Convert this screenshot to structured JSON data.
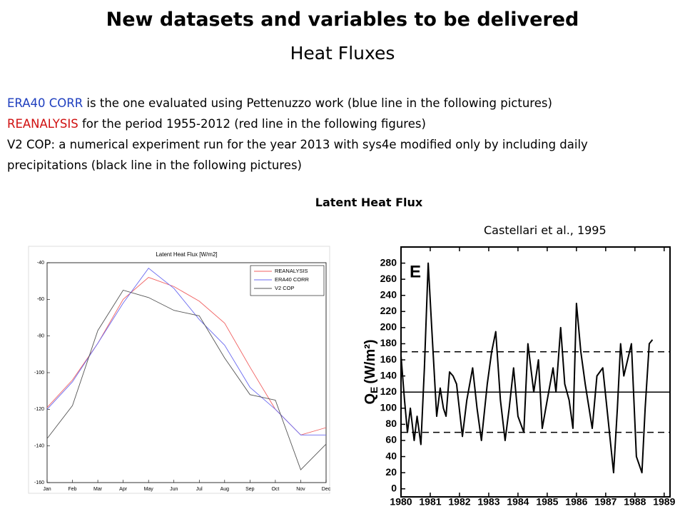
{
  "header": {
    "title": "New datasets and variables to be delivered",
    "subtitle": "Heat Fluxes"
  },
  "body": {
    "lines": [
      {
        "lead": "ERA40 CORR",
        "lead_color": "#1f3fbf",
        "text": " is the one evaluated using Pettenuzzo work (blue line in the following pictures)"
      },
      {
        "lead": "REANALYSIS",
        "lead_color": "#d01010",
        "text": " for the period 1955-2012 (red line in the following figures)"
      },
      {
        "text": "V2 COP: a numerical experiment run for the year 2013 with sys4e modified only by including daily precipitations (black line in the following pictures)"
      }
    ]
  },
  "section_label": "Latent Heat Flux",
  "citation": "Castellari et al., 1995",
  "chart_data": [
    {
      "type": "line",
      "title": "Latent Heat Flux [W/m2]",
      "categories": [
        "Jan",
        "Feb",
        "Mar",
        "Apr",
        "May",
        "Jun",
        "Jul",
        "Aug",
        "Sep",
        "Oct",
        "Nov",
        "Dec"
      ],
      "series": [
        {
          "name": "REANALYSIS",
          "color": "#f06060",
          "values": [
            -119,
            -104,
            -84,
            -60,
            -48,
            -53,
            -61,
            -73,
            -97,
            -120,
            -134,
            -130
          ]
        },
        {
          "name": "ERA40 CORR",
          "color": "#6a6af0",
          "values": [
            -120,
            -105,
            -84,
            -62,
            -43,
            -54,
            -71,
            -85,
            -108,
            -120,
            -134,
            -134
          ]
        },
        {
          "name": "V2 COP",
          "color": "#555555",
          "values": [
            -136,
            -118,
            -77,
            -55,
            -59,
            -66,
            -69,
            -92,
            -112,
            -115,
            -153,
            -139
          ]
        }
      ],
      "ylim": [
        -160,
        -40
      ],
      "yticks": [
        -160,
        -140,
        -120,
        -100,
        -80,
        -60,
        -40
      ],
      "grid": false,
      "legend": "upper right"
    },
    {
      "type": "line",
      "annotation": "E",
      "ylabel": {
        "symbol": "Q",
        "subscript": "E",
        "unit": "(W/m²)"
      },
      "x": [
        1980.0,
        1980.12,
        1980.22,
        1980.32,
        1980.45,
        1980.55,
        1980.68,
        1980.8,
        1980.93,
        1981.05,
        1981.22,
        1981.34,
        1981.45,
        1981.54,
        1981.66,
        1981.78,
        1981.9,
        1982.1,
        1982.25,
        1982.45,
        1982.6,
        1982.75,
        1982.95,
        1983.1,
        1983.24,
        1983.4,
        1983.56,
        1983.7,
        1983.85,
        1984.0,
        1984.2,
        1984.34,
        1984.54,
        1984.7,
        1984.83,
        1985.0,
        1985.2,
        1985.3,
        1985.46,
        1985.6,
        1985.75,
        1985.88,
        1986.0,
        1986.15,
        1986.3,
        1986.54,
        1986.7,
        1986.9,
        1987.1,
        1987.27,
        1987.4,
        1987.51,
        1987.62,
        1987.75,
        1987.88,
        1988.05,
        1988.24,
        1988.35,
        1988.49,
        1988.6
      ],
      "values": [
        165,
        110,
        70,
        100,
        60,
        90,
        55,
        150,
        280,
        200,
        90,
        125,
        100,
        90,
        145,
        140,
        130,
        65,
        110,
        150,
        100,
        60,
        130,
        170,
        195,
        110,
        60,
        100,
        150,
        90,
        70,
        180,
        120,
        160,
        75,
        110,
        150,
        120,
        200,
        130,
        110,
        75,
        230,
        170,
        130,
        75,
        140,
        150,
        80,
        20,
        100,
        180,
        140,
        160,
        180,
        40,
        20,
        100,
        180,
        185
      ],
      "color": "#000000",
      "hlines": [
        {
          "value": 170,
          "style": "dashed"
        },
        {
          "value": 120,
          "style": "solid"
        },
        {
          "value": 70,
          "style": "dashed"
        }
      ],
      "xlim": [
        1980,
        1989.2
      ],
      "xticks": [
        1980,
        1981,
        1982,
        1983,
        1984,
        1985,
        1986,
        1987,
        1988,
        1989
      ],
      "ylim": [
        -10,
        300
      ],
      "yticks": [
        0,
        20,
        40,
        60,
        80,
        100,
        120,
        140,
        160,
        180,
        200,
        220,
        240,
        260,
        280
      ]
    }
  ]
}
